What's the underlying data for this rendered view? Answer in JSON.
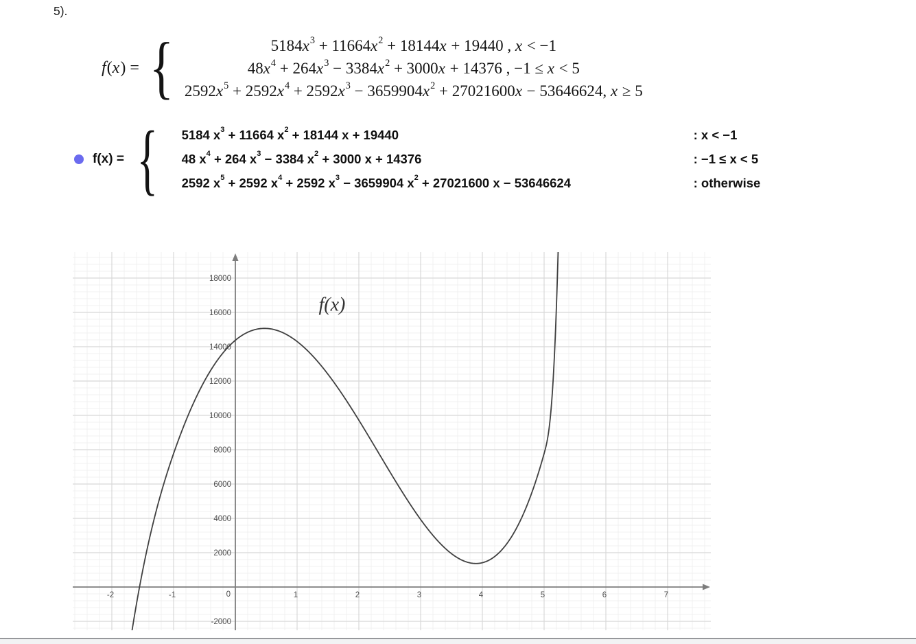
{
  "page": {
    "problem_number": "5)."
  },
  "equation_serif": {
    "lhs": "f(x) =",
    "brace": "{",
    "lines": [
      {
        "expr": "5184x^3 + 11664x^2 + 18144x + 19440 , x < −1"
      },
      {
        "expr": "48x^4 + 264x^3 − 3384x^2 + 3000x + 14376 , −1 ≤  x < 5"
      },
      {
        "expr": "2592x^5 + 2592x^4 + 2592x^3 − 3659904x^2 + 27021600x − 53646624, x ≥ 5"
      }
    ]
  },
  "equation_geogebra": {
    "lhs": "f(x) =",
    "brace": "{",
    "bullet_color": "#6b6bef",
    "rows": [
      {
        "expr": "5184 x^3 + 11664 x^2 + 18144 x + 19440",
        "cond": ": x < −1"
      },
      {
        "expr": "48 x^4 + 264 x^3 − 3384 x^2 + 3000 x + 14376",
        "cond": ": −1 ≤ x < 5"
      },
      {
        "expr": "2592 x^5 + 2592 x^4 + 2592 x^3 − 3659904 x^2 + 27021600 x − 53646624",
        "cond": ": otherwise"
      }
    ]
  },
  "chart_data": {
    "type": "line",
    "title": "",
    "curve_label": "f(x)",
    "x_ticks": [
      -2,
      -1,
      0,
      1,
      2,
      3,
      4,
      5,
      6,
      7
    ],
    "y_ticks": [
      -2000,
      2000,
      4000,
      6000,
      8000,
      10000,
      12000,
      14000,
      16000,
      18000
    ],
    "origin_label": "0",
    "window": {
      "xmin": -2.6333,
      "xmax": 7.7,
      "ymin": -2520,
      "ymax": 19520
    },
    "x_major_step": 1,
    "y_major_step": 2000,
    "x_minor_step": 0.2,
    "y_minor_step": 400,
    "grid": true,
    "pieces": [
      {
        "coeffs": [
          5184,
          11664,
          18144,
          19440
        ],
        "from": -2.64,
        "to": -1
      },
      {
        "coeffs": [
          48,
          264,
          -3384,
          3000,
          14376
        ],
        "from": -1,
        "to": 5
      },
      {
        "coeffs": [
          2592,
          2592,
          2592,
          -3659904,
          27021600,
          -53646624
        ],
        "from": 5,
        "to": 5.3
      }
    ],
    "key_points": {
      "x_intercept": -1.55,
      "local_max": {
        "x": 0.47,
        "y": 15070
      },
      "local_min": {
        "x": 3.9,
        "y": 1370
      },
      "junctions": [
        {
          "x": -1,
          "y": 7776
        },
        {
          "x": 5,
          "y": 7776
        }
      ]
    },
    "label_pos": {
      "x": 1.35,
      "y": 16100
    },
    "colors": {
      "curve": "#404040",
      "axis": "#7d7d7d",
      "grid_major": "#d8d8d8",
      "grid_minor": "#f0f0f0",
      "tick_text": "#4d4d4d",
      "curve_label": "#333333"
    }
  }
}
